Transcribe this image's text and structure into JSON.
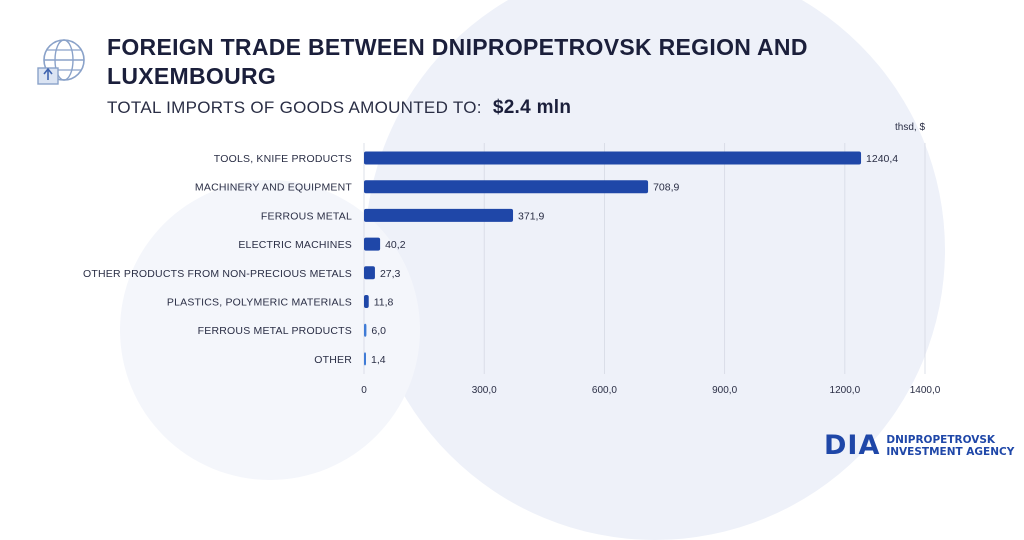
{
  "header": {
    "title": "FOREIGN TRADE BETWEEN DNIPROPETROVSK REGION AND LUXEMBOURG",
    "subtitle_label": "TOTAL IMPORTS OF GOODS AMOUNTED TO:",
    "subtitle_value": "$2.4  mln",
    "icon": "globe-import-icon"
  },
  "chart_data": {
    "type": "bar",
    "orientation": "horizontal",
    "unit_label": "thsd, $",
    "categories": [
      "TOOLS, KNIFE PRODUCTS",
      "MACHINERY AND EQUIPMENT",
      "FERROUS METAL",
      "ELECTRIC MACHINES",
      "OTHER PRODUCTS FROM NON-PRECIOUS METALS",
      "PLASTICS, POLYMERIC MATERIALS",
      "FERROUS METAL PRODUCTS",
      "OTHER"
    ],
    "values": [
      1240.4,
      708.9,
      371.9,
      40.2,
      27.3,
      11.8,
      6.0,
      1.4
    ],
    "value_labels": [
      "1240,4",
      "708,9",
      "371,9",
      "40,2",
      "27,3",
      "11,8",
      "6,0",
      "1,4"
    ],
    "xticks": [
      0,
      300,
      600,
      900,
      1200,
      1400
    ],
    "xtick_labels": [
      "0",
      "300,0",
      "600,0",
      "900,0",
      "1200,0",
      "1400,0"
    ],
    "xlim": [
      0,
      1400
    ],
    "grid": "vertical",
    "colors": {
      "bar": "#1f47a8",
      "bar_small": "#3f7bd6",
      "grid": "#d5d9e4",
      "text": "#2a2e45"
    }
  },
  "logo": {
    "mark": "DIA",
    "line1": "DNIPROPETROVSK",
    "line2": "INVESTMENT AGENCY"
  }
}
